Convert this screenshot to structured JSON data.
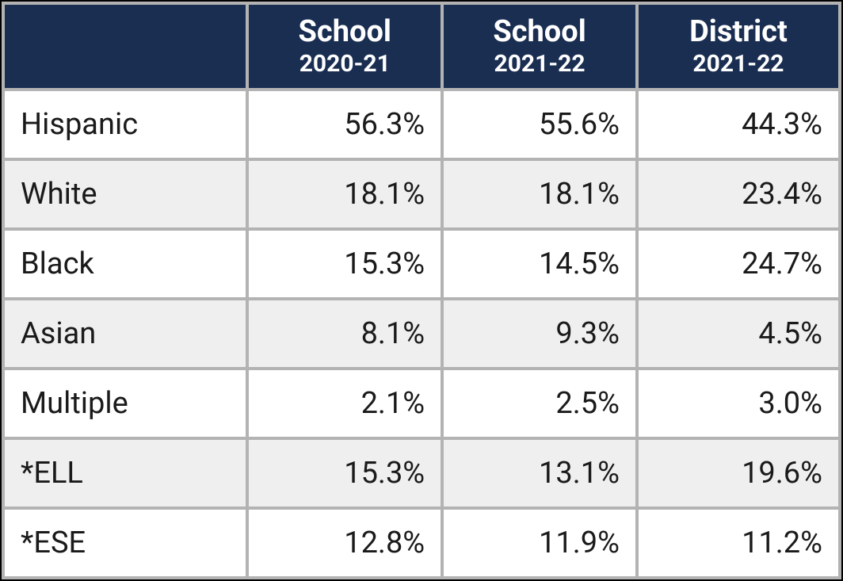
{
  "table": {
    "type": "table",
    "header_bg": "#1a2e52",
    "header_fg": "#ffffff",
    "row_bg_odd": "#ffffff",
    "row_bg_even": "#efefef",
    "border_color": "#b3b3b3",
    "outer_border_color": "#000000",
    "header_main_fontsize": 38,
    "header_sub_fontsize": 30,
    "cell_fontsize": 38,
    "columns": [
      {
        "main": "",
        "sub": ""
      },
      {
        "main": "School",
        "sub": "2020-21"
      },
      {
        "main": "School",
        "sub": "2021-22"
      },
      {
        "main": "District",
        "sub": "2021-22"
      }
    ],
    "rows": [
      {
        "label": "Hispanic",
        "values": [
          "56.3%",
          "55.6%",
          "44.3%"
        ]
      },
      {
        "label": "White",
        "values": [
          "18.1%",
          "18.1%",
          "23.4%"
        ]
      },
      {
        "label": "Black",
        "values": [
          "15.3%",
          "14.5%",
          "24.7%"
        ]
      },
      {
        "label": "Asian",
        "values": [
          "8.1%",
          "9.3%",
          "4.5%"
        ]
      },
      {
        "label": "Multiple",
        "values": [
          "2.1%",
          "2.5%",
          "3.0%"
        ]
      },
      {
        "label": "*ELL",
        "values": [
          "15.3%",
          "13.1%",
          "19.6%"
        ]
      },
      {
        "label": "*ESE",
        "values": [
          "12.8%",
          "11.9%",
          "11.2%"
        ]
      }
    ]
  }
}
